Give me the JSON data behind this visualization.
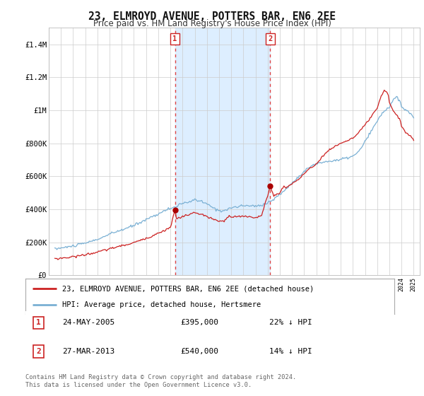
{
  "title": "23, ELMROYD AVENUE, POTTERS BAR, EN6 2EE",
  "subtitle": "Price paid vs. HM Land Registry's House Price Index (HPI)",
  "background_color": "#ffffff",
  "plot_bg_color": "#ffffff",
  "grid_color": "#cccccc",
  "sale1": {
    "date_x": 2005.37,
    "price": 395000,
    "label": "1",
    "date_str": "24-MAY-2005",
    "price_str": "£395,000",
    "pct_str": "22% ↓ HPI"
  },
  "sale2": {
    "date_x": 2013.21,
    "price": 540000,
    "label": "2",
    "date_str": "27-MAR-2013",
    "price_str": "£540,000",
    "pct_str": "14% ↓ HPI"
  },
  "vline_color": "#dd4444",
  "sale_marker_color": "#aa0000",
  "hpi_line_color": "#7ab0d4",
  "price_line_color": "#cc2222",
  "shaded_color": "#ddeeff",
  "annotation_box_color": "#cc2222",
  "footer_text": "Contains HM Land Registry data © Crown copyright and database right 2024.\nThis data is licensed under the Open Government Licence v3.0.",
  "xmin": 1995.5,
  "xmax": 2025.5,
  "ylim": [
    0,
    1500000
  ],
  "yticks": [
    0,
    200000,
    400000,
    600000,
    800000,
    1000000,
    1200000,
    1400000
  ],
  "ytick_labels": [
    "£0",
    "£200K",
    "£400K",
    "£600K",
    "£800K",
    "£1M",
    "£1.2M",
    "£1.4M"
  ]
}
